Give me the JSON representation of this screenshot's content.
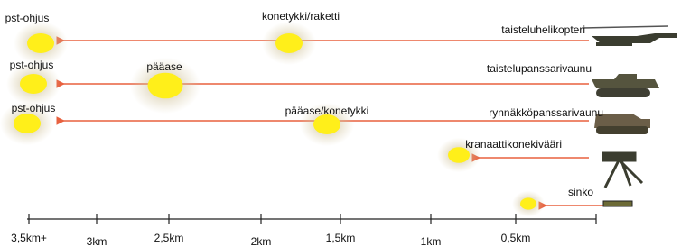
{
  "weapons": [
    {
      "label": "taisteluhelikopteri",
      "effects": [
        "pst-ohjus",
        "konetykki/raketti"
      ]
    },
    {
      "label": "taistelupanssarivaunu",
      "effects": [
        "pst-ohjus",
        "pääase"
      ]
    },
    {
      "label": "rynnäkköpanssarivaunu",
      "effects": [
        "pst-ohjus",
        "pääase/konetykki"
      ]
    },
    {
      "label": "kranaattikonekivääri"
    },
    {
      "label": "sinko"
    }
  ],
  "scale": {
    "ticks": [
      "3,5km+",
      "3km",
      "2,5km",
      "2km",
      "1,5km",
      "1km",
      "0,5km"
    ]
  }
}
